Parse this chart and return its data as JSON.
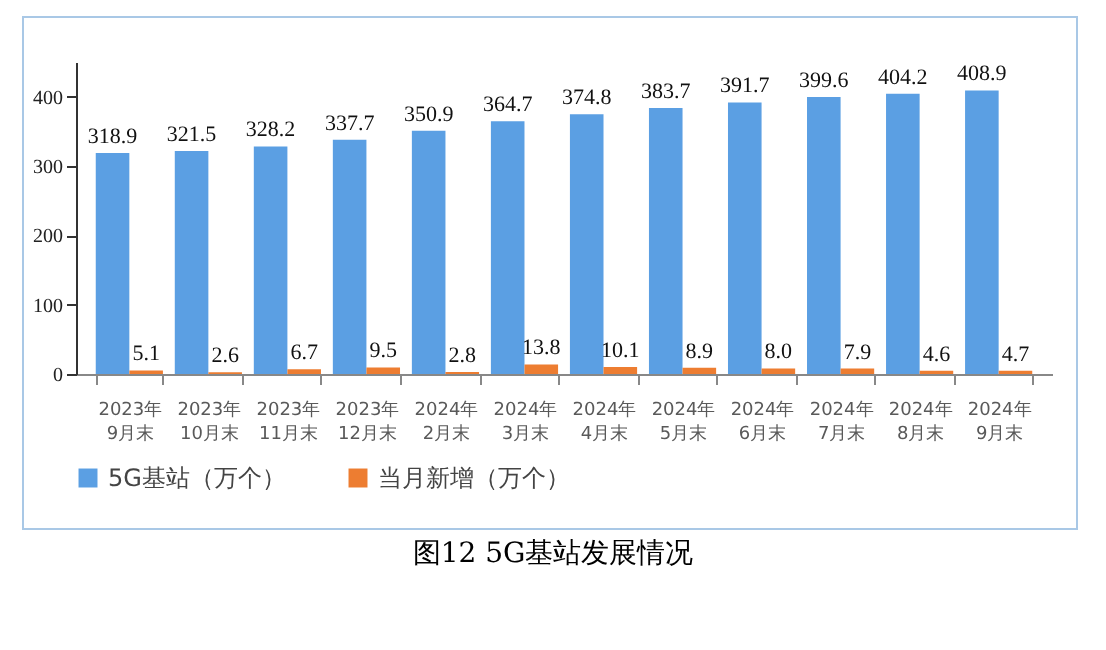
{
  "chart_data": {
    "type": "bar",
    "title": "图12 5G基站发展情况",
    "categories": [
      "2023年\n9月末",
      "2023年\n10月末",
      "2023年\n11月末",
      "2023年\n12月末",
      "2024年\n2月末",
      "2024年\n3月末",
      "2024年\n4月末",
      "2024年\n5月末",
      "2024年\n6月末",
      "2024年\n7月末",
      "2024年\n8月末",
      "2024年\n9月末"
    ],
    "series": [
      {
        "name": "5G基站（万个）",
        "color": "#5b9fe3",
        "values": [
          318.9,
          321.5,
          328.2,
          337.7,
          350.9,
          364.7,
          374.8,
          383.7,
          391.7,
          399.6,
          404.2,
          408.9
        ],
        "value_labels": [
          "318.9",
          "321.5",
          "328.2",
          "337.7",
          "350.9",
          "364.7",
          "374.8",
          "383.7",
          "391.7",
          "399.6",
          "404.2",
          "408.9"
        ]
      },
      {
        "name": "当月新增（万个）",
        "color": "#ed7d31",
        "values": [
          5.1,
          2.6,
          6.7,
          9.5,
          2.8,
          13.8,
          10.1,
          8.9,
          8.0,
          7.9,
          4.6,
          4.7
        ],
        "value_labels": [
          "5.1",
          "2.6",
          "6.7",
          "9.5",
          "2.8",
          "13.8",
          "10.1",
          "8.9",
          "8.0",
          "7.9",
          "4.6",
          "4.7"
        ]
      }
    ],
    "ylim": [
      0,
      450
    ],
    "yticks": [
      0,
      100,
      200,
      300,
      400
    ],
    "legend": "bottom",
    "grid": false
  }
}
